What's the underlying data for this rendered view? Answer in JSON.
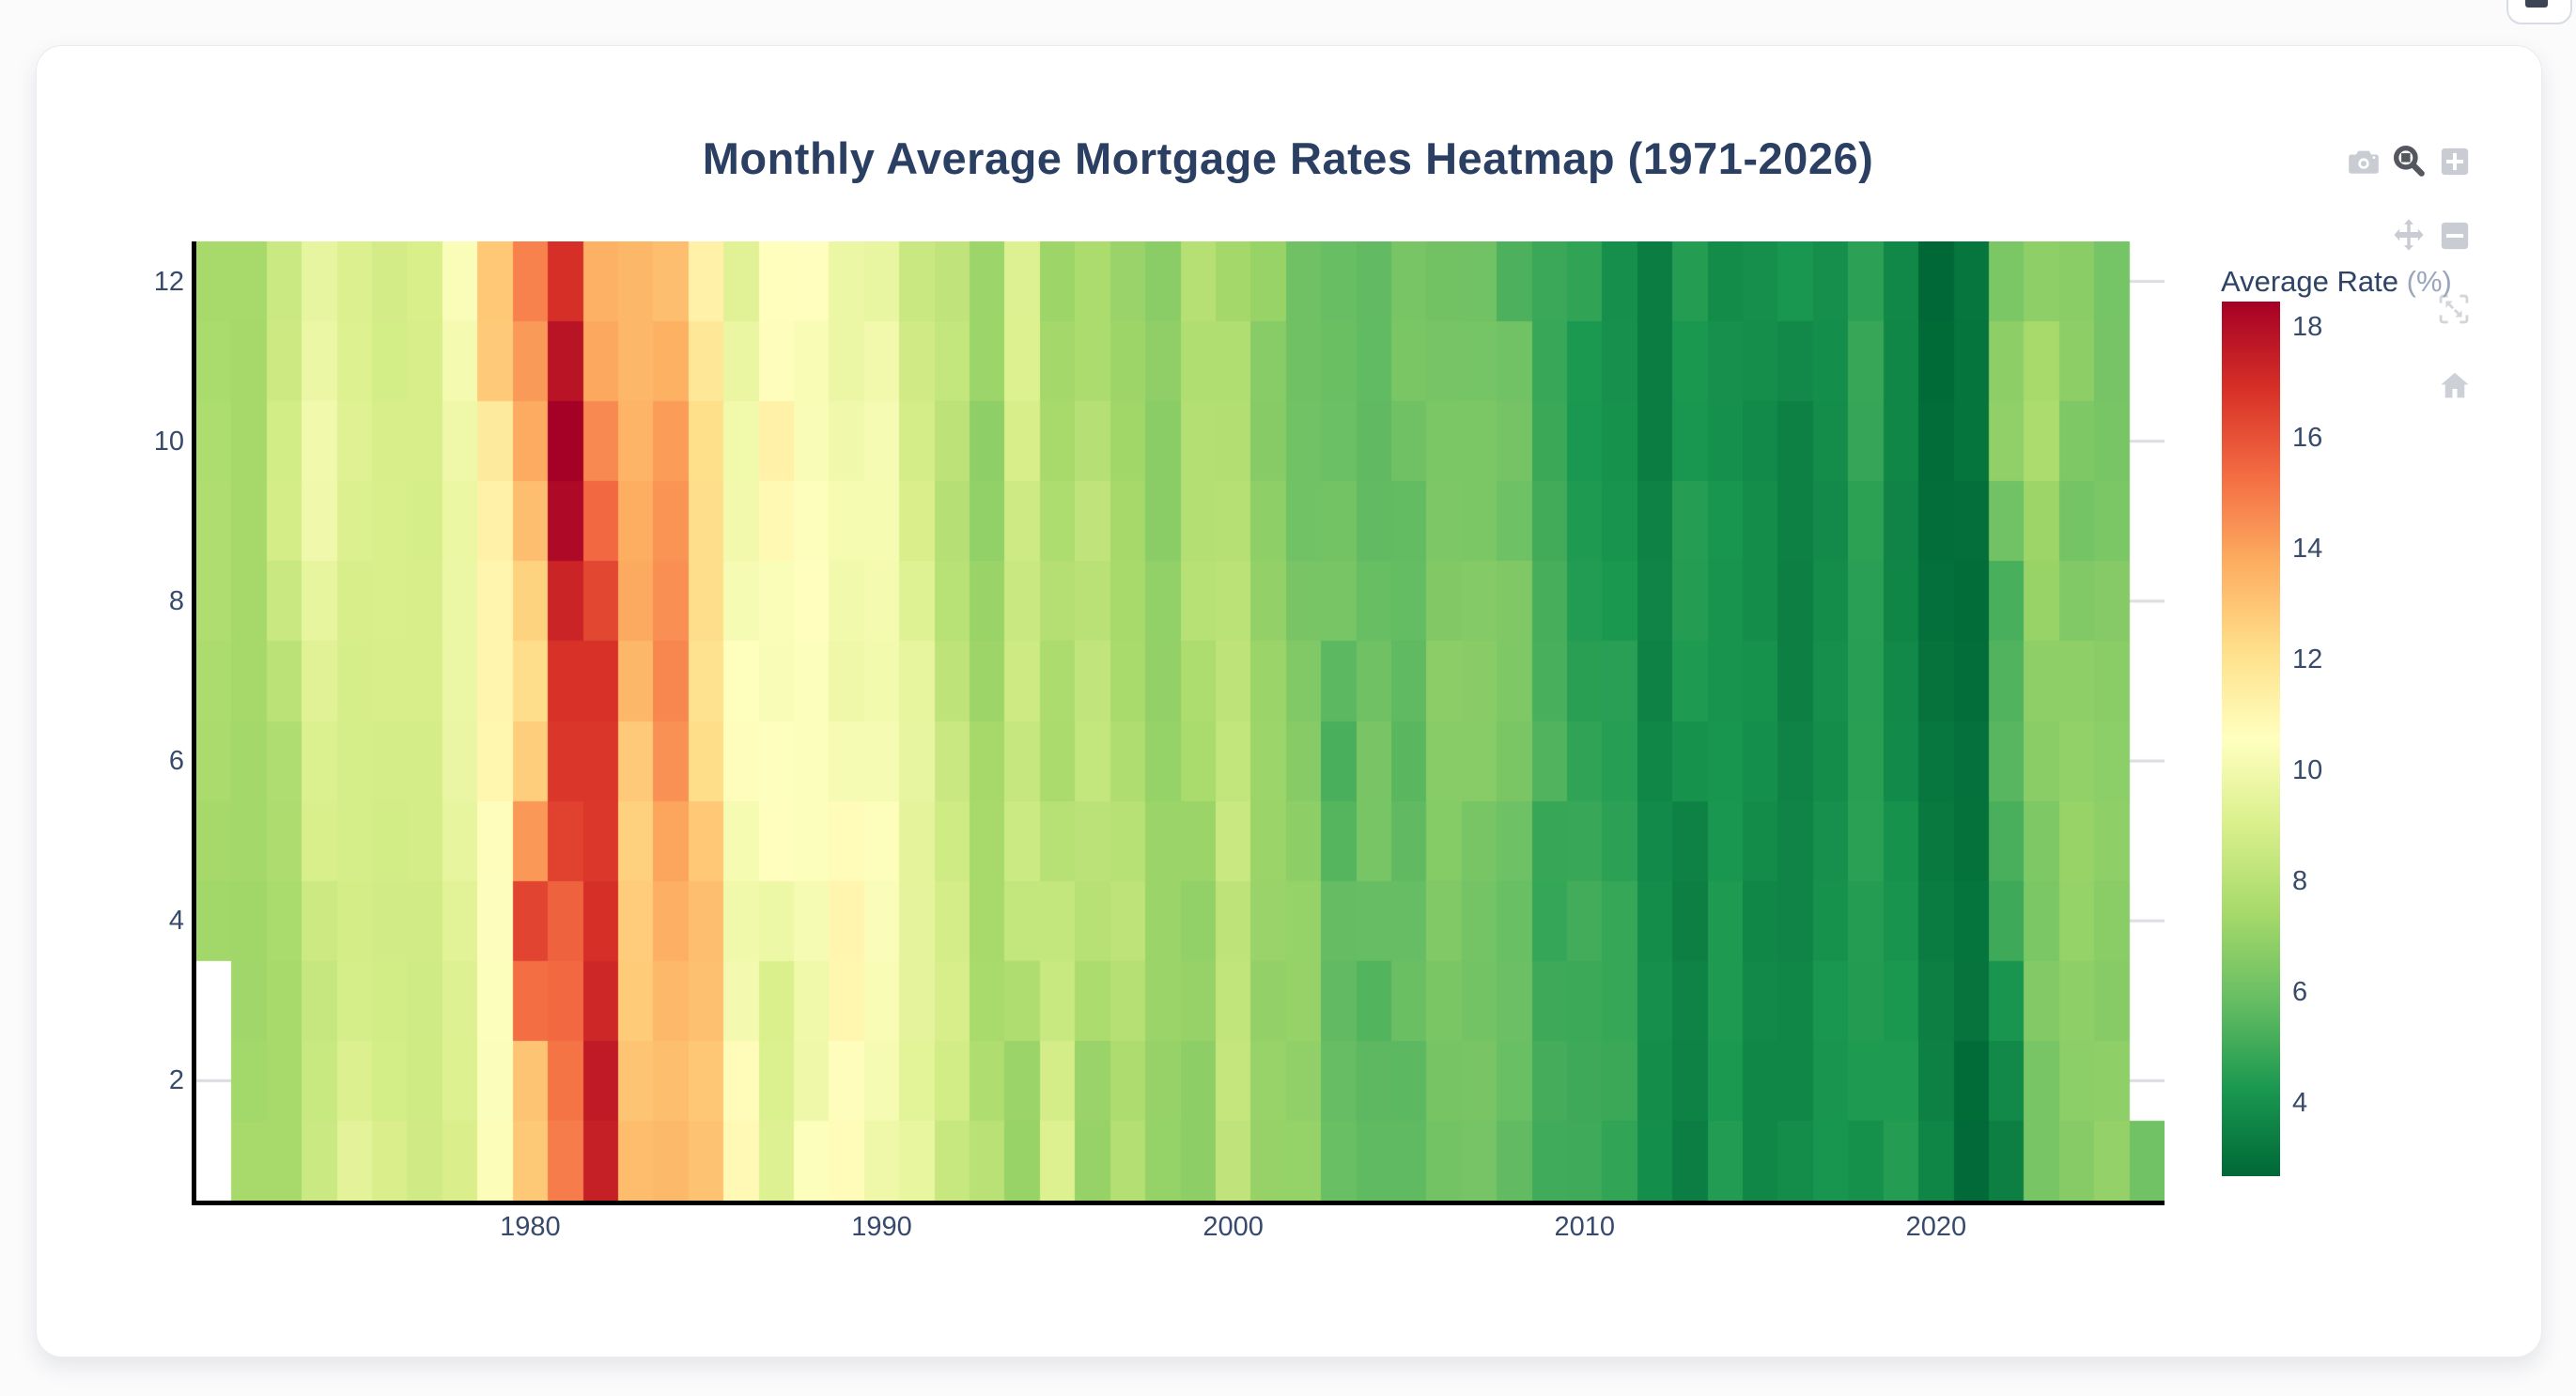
{
  "title": "Monthly Average Mortgage Rates Heatmap (1971-2026)",
  "colorbar": {
    "title": "Average Rate",
    "unit": "(%)",
    "ticks": [
      4,
      6,
      8,
      10,
      12,
      14,
      16,
      18
    ]
  },
  "modebar": {
    "icons": [
      "camera-icon",
      "zoom-icon",
      "zoom-in-icon",
      "pan-icon",
      "zoom-out-icon",
      "autoscale-icon",
      "home-icon"
    ],
    "active_icon": "zoom-icon"
  },
  "corner_button_icon": "clipped-dark-glyph",
  "chart_data": {
    "type": "heatmap",
    "title": "Monthly Average Mortgage Rates Heatmap (1971-2026)",
    "xlabel": "",
    "ylabel": "",
    "xticks": [
      1980,
      1990,
      2000,
      2010,
      2020
    ],
    "yticks": [
      2,
      4,
      6,
      8,
      10,
      12
    ],
    "x_range": [
      1970.5,
      2026.5
    ],
    "y_range": [
      0.5,
      12.5
    ],
    "grid": "horizontal-under-cells",
    "legend_position": "right-colorbar",
    "zmin": 2.68,
    "zmax": 18.45,
    "colorscale": [
      [
        0.0,
        "#006837"
      ],
      [
        0.1,
        "#1a9850"
      ],
      [
        0.2,
        "#66bd63"
      ],
      [
        0.3,
        "#a6d96a"
      ],
      [
        0.4,
        "#d9ef8b"
      ],
      [
        0.5,
        "#ffffbf"
      ],
      [
        0.6,
        "#fee08b"
      ],
      [
        0.7,
        "#fdae61"
      ],
      [
        0.8,
        "#f46d43"
      ],
      [
        0.9,
        "#d73027"
      ],
      [
        1.0,
        "#a50026"
      ]
    ],
    "gridline_color": "#dadce1",
    "years": [
      1971,
      1972,
      1973,
      1974,
      1975,
      1976,
      1977,
      1978,
      1979,
      1980,
      1981,
      1982,
      1983,
      1984,
      1985,
      1986,
      1987,
      1988,
      1989,
      1990,
      1991,
      1992,
      1993,
      1994,
      1995,
      1996,
      1997,
      1998,
      1999,
      2000,
      2001,
      2002,
      2003,
      2004,
      2005,
      2006,
      2007,
      2008,
      2009,
      2010,
      2011,
      2012,
      2013,
      2014,
      2015,
      2016,
      2017,
      2018,
      2019,
      2020,
      2021,
      2022,
      2023,
      2024,
      2025,
      2026
    ],
    "months": [
      1,
      2,
      3,
      4,
      5,
      6,
      7,
      8,
      9,
      10,
      11,
      12
    ],
    "z_row_order": "one row per year 1971-2026, each row months Jan-Dec, null = missing",
    "z": [
      [
        null,
        null,
        null,
        7.31,
        7.43,
        7.53,
        7.6,
        7.7,
        7.69,
        7.63,
        7.55,
        7.48
      ],
      [
        7.44,
        7.33,
        7.3,
        7.29,
        7.37,
        7.37,
        7.4,
        7.4,
        7.42,
        7.42,
        7.43,
        7.44
      ],
      [
        7.44,
        7.44,
        7.46,
        7.54,
        7.65,
        7.73,
        8.05,
        8.5,
        8.82,
        8.77,
        8.58,
        8.54
      ],
      [
        8.54,
        8.46,
        8.41,
        8.58,
        8.97,
        9.09,
        9.28,
        9.59,
        9.96,
        9.98,
        9.79,
        9.62
      ],
      [
        9.43,
        9.1,
        8.89,
        8.82,
        8.91,
        8.89,
        8.89,
        8.94,
        9.13,
        9.22,
        9.15,
        9.1
      ],
      [
        9.02,
        8.81,
        8.76,
        8.73,
        8.77,
        8.85,
        8.93,
        8.98,
        8.98,
        8.93,
        8.81,
        8.79
      ],
      [
        8.72,
        8.67,
        8.69,
        8.75,
        8.83,
        8.86,
        8.94,
        8.94,
        8.9,
        8.92,
        8.92,
        8.96
      ],
      [
        9.02,
        9.16,
        9.2,
        9.36,
        9.57,
        9.71,
        9.74,
        9.79,
        9.76,
        9.86,
        10.11,
        10.35
      ],
      [
        10.39,
        10.41,
        10.43,
        10.5,
        10.69,
        11.04,
        11.09,
        11.09,
        11.3,
        11.64,
        12.83,
        12.9
      ],
      [
        12.88,
        13.04,
        15.28,
        16.33,
        14.26,
        12.71,
        12.19,
        12.56,
        13.2,
        13.79,
        14.21,
        14.79
      ],
      [
        14.9,
        15.13,
        15.4,
        15.58,
        16.4,
        16.7,
        16.83,
        17.28,
        18.16,
        18.45,
        17.82,
        16.92
      ],
      [
        17.4,
        17.6,
        17.16,
        16.89,
        16.68,
        16.7,
        16.82,
        16.27,
        15.43,
        14.61,
        13.83,
        13.62
      ],
      [
        13.25,
        13.04,
        12.8,
        12.78,
        12.63,
        12.87,
        13.43,
        13.81,
        13.73,
        13.54,
        13.44,
        13.42
      ],
      [
        13.37,
        13.23,
        13.39,
        13.65,
        13.94,
        14.42,
        14.67,
        14.47,
        14.35,
        14.13,
        13.64,
        13.18
      ],
      [
        13.08,
        12.92,
        13.17,
        13.2,
        12.91,
        12.22,
        12.03,
        12.19,
        12.19,
        12.14,
        11.78,
        11.26
      ],
      [
        10.88,
        10.71,
        10.08,
        9.94,
        10.14,
        10.68,
        10.51,
        10.2,
        10.01,
        9.97,
        9.7,
        9.31
      ],
      [
        9.2,
        9.08,
        9.04,
        9.83,
        10.6,
        10.54,
        10.28,
        10.33,
        10.89,
        11.26,
        10.65,
        10.64
      ],
      [
        10.43,
        9.89,
        9.93,
        10.2,
        10.46,
        10.46,
        10.43,
        10.6,
        10.48,
        10.3,
        10.27,
        10.61
      ],
      [
        10.73,
        10.65,
        11.03,
        11.05,
        10.77,
        10.2,
        9.88,
        9.99,
        10.13,
        9.95,
        9.77,
        9.74
      ],
      [
        9.9,
        10.2,
        10.27,
        10.37,
        10.48,
        10.16,
        10.04,
        10.1,
        10.18,
        10.17,
        10.01,
        9.67
      ],
      [
        9.64,
        9.37,
        9.5,
        9.49,
        9.47,
        9.62,
        9.58,
        9.24,
        9.01,
        8.86,
        8.71,
        8.5
      ],
      [
        8.43,
        8.76,
        8.94,
        8.85,
        8.67,
        8.51,
        8.13,
        7.98,
        7.92,
        8.09,
        8.31,
        8.22
      ],
      [
        7.99,
        7.68,
        7.5,
        7.47,
        7.47,
        7.42,
        7.21,
        7.11,
        6.92,
        6.83,
        7.16,
        7.17
      ],
      [
        7.07,
        7.15,
        7.68,
        8.32,
        8.6,
        8.4,
        8.61,
        8.51,
        8.64,
        8.93,
        9.17,
        9.2
      ],
      [
        9.15,
        8.83,
        8.46,
        8.32,
        7.96,
        7.57,
        7.61,
        7.86,
        7.64,
        7.48,
        7.38,
        7.2
      ],
      [
        7.03,
        7.08,
        7.62,
        7.93,
        8.07,
        8.32,
        8.25,
        8.0,
        8.23,
        7.92,
        7.62,
        7.6
      ],
      [
        7.82,
        7.65,
        7.9,
        8.14,
        7.94,
        7.69,
        7.5,
        7.48,
        7.43,
        7.29,
        7.21,
        7.1
      ],
      [
        6.99,
        7.04,
        7.13,
        7.14,
        7.14,
        7.0,
        6.95,
        6.92,
        6.72,
        6.71,
        6.87,
        6.72
      ],
      [
        6.79,
        6.81,
        7.04,
        6.92,
        7.15,
        7.55,
        7.63,
        7.94,
        7.82,
        7.85,
        7.74,
        7.91
      ],
      [
        8.21,
        8.33,
        8.24,
        8.15,
        8.52,
        8.29,
        8.15,
        8.03,
        7.91,
        7.8,
        7.75,
        7.38
      ],
      [
        7.03,
        7.05,
        6.95,
        7.08,
        7.15,
        7.16,
        7.13,
        6.95,
        6.82,
        6.62,
        6.66,
        7.07
      ],
      [
        7.0,
        6.89,
        7.01,
        6.99,
        6.81,
        6.65,
        6.49,
        6.29,
        6.09,
        6.11,
        6.07,
        6.05
      ],
      [
        5.92,
        5.84,
        5.75,
        5.81,
        5.48,
        5.23,
        5.63,
        6.26,
        6.15,
        5.95,
        5.93,
        5.88
      ],
      [
        5.71,
        5.64,
        5.45,
        5.83,
        6.27,
        6.29,
        6.06,
        5.87,
        5.75,
        5.72,
        5.73,
        5.75
      ],
      [
        5.71,
        5.63,
        5.93,
        5.86,
        5.72,
        5.58,
        5.7,
        5.82,
        5.77,
        6.07,
        6.33,
        6.27
      ],
      [
        6.15,
        6.25,
        6.32,
        6.51,
        6.6,
        6.68,
        6.76,
        6.52,
        6.4,
        6.36,
        6.24,
        6.14
      ],
      [
        6.22,
        6.29,
        6.16,
        6.18,
        6.26,
        6.66,
        6.7,
        6.57,
        6.38,
        6.38,
        6.21,
        6.1
      ],
      [
        5.76,
        5.92,
        5.97,
        5.92,
        6.04,
        6.32,
        6.43,
        6.48,
        6.04,
        6.2,
        6.09,
        5.29
      ],
      [
        5.05,
        5.13,
        5.0,
        4.81,
        4.86,
        5.42,
        5.22,
        5.19,
        5.06,
        4.95,
        4.88,
        4.93
      ],
      [
        5.03,
        4.99,
        4.97,
        5.1,
        4.89,
        4.74,
        4.56,
        4.43,
        4.35,
        4.23,
        4.3,
        4.71
      ],
      [
        4.76,
        4.95,
        4.84,
        4.84,
        4.64,
        4.51,
        4.55,
        4.27,
        4.11,
        4.07,
        3.99,
        3.96
      ],
      [
        3.92,
        3.89,
        3.95,
        3.91,
        3.8,
        3.68,
        3.55,
        3.6,
        3.5,
        3.38,
        3.35,
        3.35
      ],
      [
        3.41,
        3.53,
        3.57,
        3.45,
        3.54,
        4.07,
        4.37,
        4.46,
        4.49,
        4.19,
        4.26,
        4.46
      ],
      [
        4.43,
        4.3,
        4.34,
        4.34,
        4.19,
        4.16,
        4.13,
        4.12,
        4.16,
        4.04,
        4.0,
        3.86
      ],
      [
        3.67,
        3.71,
        3.77,
        3.67,
        3.84,
        3.98,
        4.05,
        3.91,
        3.89,
        3.8,
        3.94,
        3.96
      ],
      [
        3.87,
        3.66,
        3.69,
        3.61,
        3.6,
        3.57,
        3.44,
        3.44,
        3.46,
        3.47,
        3.77,
        4.2
      ],
      [
        4.15,
        4.17,
        4.2,
        4.05,
        4.01,
        3.9,
        3.97,
        3.88,
        3.81,
        3.9,
        3.92,
        3.95
      ],
      [
        4.03,
        4.33,
        4.44,
        4.47,
        4.59,
        4.57,
        4.53,
        4.55,
        4.63,
        4.83,
        4.87,
        4.64
      ],
      [
        4.46,
        4.37,
        4.27,
        4.14,
        4.07,
        3.8,
        3.77,
        3.62,
        3.61,
        3.69,
        3.7,
        3.72
      ],
      [
        3.62,
        3.47,
        3.45,
        3.31,
        3.23,
        3.16,
        3.02,
        2.94,
        2.89,
        2.83,
        2.77,
        2.68
      ],
      [
        2.74,
        2.81,
        3.08,
        3.06,
        2.96,
        2.98,
        2.87,
        2.84,
        2.9,
        3.07,
        3.07,
        3.1
      ],
      [
        3.45,
        3.76,
        4.17,
        4.98,
        5.23,
        5.52,
        5.41,
        5.22,
        6.11,
        6.9,
        6.81,
        6.36
      ],
      [
        6.27,
        6.26,
        6.54,
        6.34,
        6.43,
        6.71,
        6.84,
        7.07,
        7.2,
        7.62,
        7.44,
        6.82
      ],
      [
        6.64,
        6.78,
        6.82,
        6.99,
        7.06,
        6.92,
        6.85,
        6.5,
        6.18,
        6.43,
        6.81,
        6.72
      ],
      [
        6.96,
        6.84,
        6.65,
        6.73,
        6.82,
        6.77,
        6.72,
        6.59,
        6.35,
        6.27,
        6.24,
        6.21
      ],
      [
        6.1,
        null,
        null,
        null,
        null,
        null,
        null,
        null,
        null,
        null,
        null,
        null
      ]
    ]
  }
}
